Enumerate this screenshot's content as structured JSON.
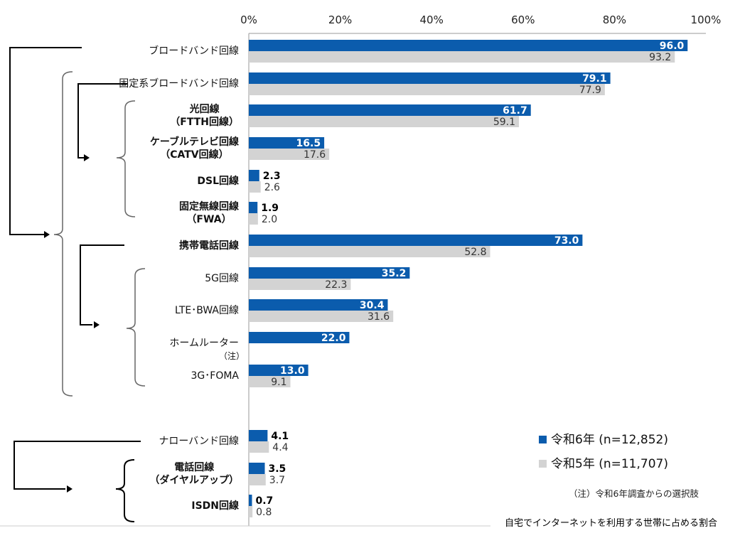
{
  "chart_data": {
    "type": "bar",
    "orientation": "horizontal",
    "xlim": [
      0,
      100
    ],
    "x_ticks": [
      "0%",
      "20%",
      "40%",
      "60%",
      "80%",
      "100%"
    ],
    "categories": [
      {
        "label": "ブロードバンド回線"
      },
      {
        "label": "固定系ブロードバンド回線"
      },
      {
        "label": "光回線",
        "label2": "（FTTH回線）"
      },
      {
        "label": "ケーブルテレビ回線",
        "label2": "（CATV回線）"
      },
      {
        "label": "DSL回線"
      },
      {
        "label": "固定無線回線",
        "label2": "（FWA）"
      },
      {
        "label": "携帯電話回線"
      },
      {
        "label": "5G回線"
      },
      {
        "label": "LTE･BWA回線"
      },
      {
        "label": "ホームルーター",
        "note": "（注）"
      },
      {
        "label": "3G･FOMA"
      },
      {
        "label": "ナローバンド回線"
      },
      {
        "label": "電話回線",
        "label2": "（ダイヤルアップ）"
      },
      {
        "label": "ISDN回線"
      }
    ],
    "series": [
      {
        "name": "令和6年 (n=12,852)",
        "color": "#0b5cad",
        "values": [
          96.0,
          79.1,
          61.7,
          16.5,
          2.3,
          1.9,
          73.0,
          35.2,
          30.4,
          22.0,
          13.0,
          4.1,
          3.5,
          0.7
        ]
      },
      {
        "name": "令和5年 (n=11,707)",
        "color": "#d3d3d3",
        "values": [
          93.2,
          77.9,
          59.1,
          17.6,
          2.6,
          2.0,
          52.8,
          22.3,
          31.6,
          null,
          9.1,
          4.4,
          3.7,
          0.8
        ]
      }
    ],
    "note": "（注）令和6年調査からの選択肢",
    "caption": "自宅でインターネットを利用する世帯に占める割合",
    "legend_position": "bottom-right",
    "grid": false
  }
}
